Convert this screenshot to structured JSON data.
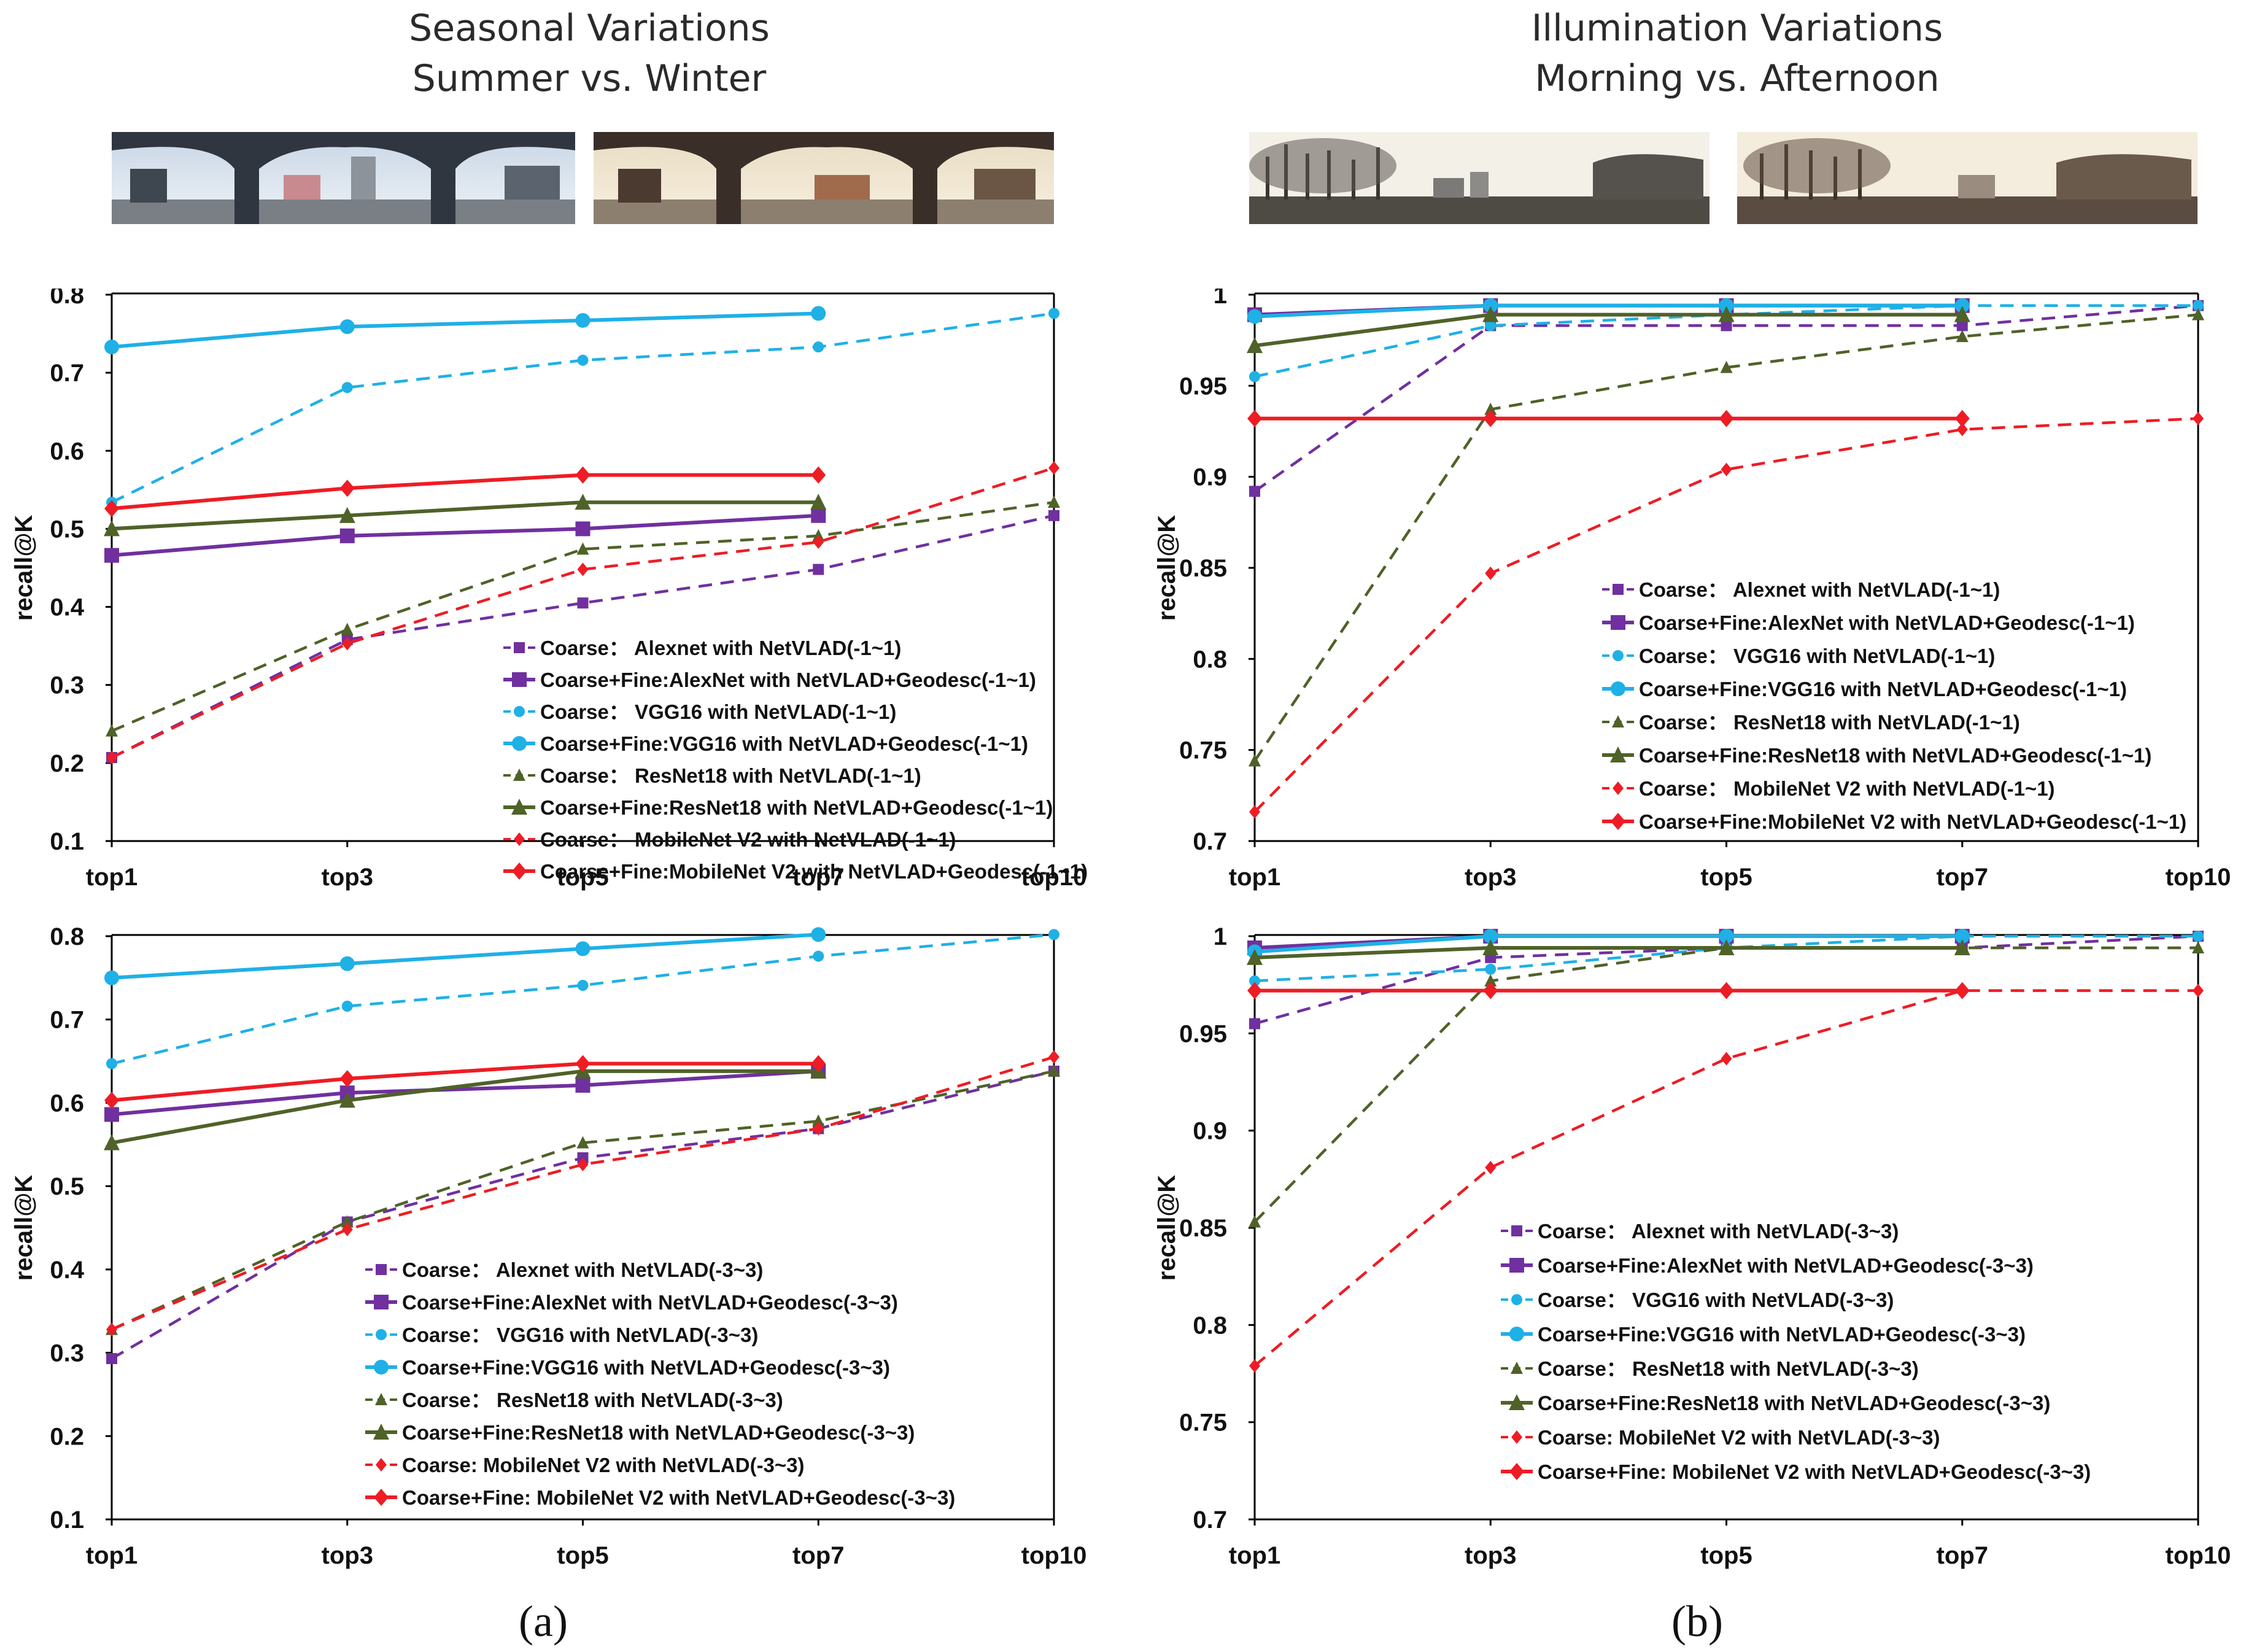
{
  "figure": {
    "panel_a_title": [
      "Seasonal Variations",
      "Summer vs. Winter"
    ],
    "panel_b_title": [
      "Illumination Variations",
      "Morning vs. Afternoon"
    ],
    "caption_a": "(a)",
    "caption_b": "(b)"
  },
  "colors": {
    "alexnet": "#7030a0",
    "vgg16": "#1fb0e6",
    "resnet18": "#4f6228",
    "mobilenet": "#ee1c24",
    "axis": "#000000"
  },
  "chart_data": [
    {
      "id": "a-top",
      "type": "line",
      "title": "Seasonal Variations: Summer vs. Winter (-1~1)",
      "xlabel": "",
      "ylabel": "recall@K",
      "categories": [
        "top1",
        "top3",
        "top5",
        "top7",
        "top10"
      ],
      "ylim": [
        0.1,
        0.8
      ],
      "yticks": [
        "0.1",
        "0.2",
        "0.3",
        "0.4",
        "0.5",
        "0.6",
        "0.7",
        "0.8"
      ],
      "series": [
        {
          "name": "Coarse：  Alexnet with NetVLAD(-1~1)",
          "model": "alexnet",
          "style": "dashed",
          "marker": "square",
          "values": [
            0.207,
            0.358,
            0.405,
            0.448,
            0.517
          ]
        },
        {
          "name": "Coarse+Fine:AlexNet with NetVLAD+Geodesc(-1~1)",
          "model": "alexnet",
          "style": "solid",
          "marker": "square",
          "values": [
            0.466,
            0.491,
            0.5,
            0.517,
            null
          ]
        },
        {
          "name": "Coarse：  VGG16 with NetVLAD(-1~1)",
          "model": "vgg16",
          "style": "dashed",
          "marker": "circle",
          "values": [
            0.534,
            0.681,
            0.716,
            0.733,
            0.776
          ]
        },
        {
          "name": "Coarse+Fine:VGG16 with NetVLAD+Geodesc(-1~1)",
          "model": "vgg16",
          "style": "solid",
          "marker": "circle",
          "values": [
            0.733,
            0.759,
            0.767,
            0.776,
            null
          ]
        },
        {
          "name": "Coarse：  ResNet18 with NetVLAD(-1~1)",
          "model": "resnet18",
          "style": "dashed",
          "marker": "triangle",
          "values": [
            0.241,
            0.371,
            0.474,
            0.491,
            0.534
          ]
        },
        {
          "name": "Coarse+Fine:ResNet18 with NetVLAD+Geodesc(-1~1)",
          "model": "resnet18",
          "style": "solid",
          "marker": "triangle",
          "values": [
            0.5,
            0.517,
            0.534,
            0.534,
            null
          ]
        },
        {
          "name": "Coarse：  MobileNet V2 with NetVLAD(-1~1)",
          "model": "mobilenet",
          "style": "dashed",
          "marker": "diamond",
          "values": [
            0.207,
            0.353,
            0.448,
            0.483,
            0.578
          ]
        },
        {
          "name": "Coarse+Fine:MobileNet V2 with NetVLAD+Geodesc(-1~1)",
          "model": "mobilenet",
          "style": "solid",
          "marker": "diamond",
          "values": [
            0.526,
            0.552,
            0.569,
            0.569,
            null
          ]
        }
      ]
    },
    {
      "id": "b-top",
      "type": "line",
      "title": "Illumination Variations: Morning vs. Afternoon (-1~1)",
      "xlabel": "",
      "ylabel": "recall@K",
      "categories": [
        "top1",
        "top3",
        "top5",
        "top7",
        "top10"
      ],
      "ylim": [
        0.7,
        1.0
      ],
      "yticks": [
        "0.7",
        "0.75",
        "0.8",
        "0.85",
        "0.9",
        "0.95",
        "1"
      ],
      "series": [
        {
          "name": "Coarse：  Alexnet with NetVLAD(-1~1)",
          "model": "alexnet",
          "style": "dashed",
          "marker": "square",
          "values": [
            0.892,
            0.983,
            0.983,
            0.983,
            0.994
          ]
        },
        {
          "name": "Coarse+Fine:AlexNet with NetVLAD+Geodesc(-1~1)",
          "model": "alexnet",
          "style": "solid",
          "marker": "square",
          "values": [
            0.989,
            0.994,
            0.994,
            0.994,
            null
          ]
        },
        {
          "name": "Coarse：  VGG16 with NetVLAD(-1~1)",
          "model": "vgg16",
          "style": "dashed",
          "marker": "circle",
          "values": [
            0.955,
            0.983,
            0.989,
            0.994,
            0.994
          ]
        },
        {
          "name": "Coarse+Fine:VGG16 with NetVLAD+Geodesc(-1~1)",
          "model": "vgg16",
          "style": "solid",
          "marker": "circle",
          "values": [
            0.988,
            0.994,
            0.994,
            0.994,
            null
          ]
        },
        {
          "name": "Coarse：  ResNet18 with NetVLAD(-1~1)",
          "model": "resnet18",
          "style": "dashed",
          "marker": "triangle",
          "values": [
            0.744,
            0.937,
            0.96,
            0.977,
            0.989
          ]
        },
        {
          "name": "Coarse+Fine:ResNet18 with NetVLAD+Geodesc(-1~1)",
          "model": "resnet18",
          "style": "solid",
          "marker": "triangle",
          "values": [
            0.972,
            0.989,
            0.989,
            0.989,
            null
          ]
        },
        {
          "name": "Coarse：  MobileNet V2 with NetVLAD(-1~1)",
          "model": "mobilenet",
          "style": "dashed",
          "marker": "diamond",
          "values": [
            0.716,
            0.847,
            0.904,
            0.926,
            0.932
          ]
        },
        {
          "name": "Coarse+Fine:MobileNet V2 with NetVLAD+Geodesc(-1~1)",
          "model": "mobilenet",
          "style": "solid",
          "marker": "diamond",
          "values": [
            0.932,
            0.932,
            0.932,
            0.932,
            null
          ]
        }
      ]
    },
    {
      "id": "a-bottom",
      "type": "line",
      "title": "Seasonal Variations: Summer vs. Winter (-3~3)",
      "xlabel": "",
      "ylabel": "recall@K",
      "categories": [
        "top1",
        "top3",
        "top5",
        "top7",
        "top10"
      ],
      "ylim": [
        0.1,
        0.8
      ],
      "yticks": [
        "0.1",
        "0.2",
        "0.3",
        "0.4",
        "0.5",
        "0.6",
        "0.7",
        "0.8"
      ],
      "series": [
        {
          "name": "Coarse：  Alexnet with NetVLAD(-3~3)",
          "model": "alexnet",
          "style": "dashed",
          "marker": "square",
          "values": [
            0.293,
            0.457,
            0.534,
            0.569,
            0.638
          ]
        },
        {
          "name": "Coarse+Fine:AlexNet with NetVLAD+Geodesc(-3~3)",
          "model": "alexnet",
          "style": "solid",
          "marker": "square",
          "values": [
            0.586,
            0.612,
            0.621,
            0.638,
            null
          ]
        },
        {
          "name": "Coarse：  VGG16 with NetVLAD(-3~3)",
          "model": "vgg16",
          "style": "dashed",
          "marker": "circle",
          "values": [
            0.647,
            0.716,
            0.741,
            0.776,
            0.802
          ]
        },
        {
          "name": "Coarse+Fine:VGG16 with NetVLAD+Geodesc(-3~3)",
          "model": "vgg16",
          "style": "solid",
          "marker": "circle",
          "values": [
            0.75,
            0.767,
            0.785,
            0.802,
            null
          ]
        },
        {
          "name": "Coarse：  ResNet18 with NetVLAD(-3~3)",
          "model": "resnet18",
          "style": "dashed",
          "marker": "triangle",
          "values": [
            0.328,
            0.457,
            0.552,
            0.578,
            0.638
          ]
        },
        {
          "name": "Coarse+Fine:ResNet18 with NetVLAD+Geodesc(-3~3)",
          "model": "resnet18",
          "style": "solid",
          "marker": "triangle",
          "values": [
            0.552,
            0.603,
            0.638,
            0.638,
            null
          ]
        },
        {
          "name": "Coarse: MobileNet V2 with NetVLAD(-3~3)",
          "model": "mobilenet",
          "style": "dashed",
          "marker": "diamond",
          "values": [
            0.328,
            0.448,
            0.526,
            0.569,
            0.655
          ]
        },
        {
          "name": "Coarse+Fine: MobileNet V2 with NetVLAD+Geodesc(-3~3)",
          "model": "mobilenet",
          "style": "solid",
          "marker": "diamond",
          "values": [
            0.603,
            0.629,
            0.647,
            0.647,
            null
          ]
        }
      ]
    },
    {
      "id": "b-bottom",
      "type": "line",
      "title": "Illumination Variations: Morning vs. Afternoon (-3~3)",
      "xlabel": "",
      "ylabel": "recall@K",
      "categories": [
        "top1",
        "top3",
        "top5",
        "top7",
        "top10"
      ],
      "ylim": [
        0.7,
        1.0
      ],
      "yticks": [
        "0.7",
        "0.75",
        "0.8",
        "0.85",
        "0.9",
        "0.95",
        "1"
      ],
      "series": [
        {
          "name": "Coarse：  Alexnet with NetVLAD(-3~3)",
          "model": "alexnet",
          "style": "dashed",
          "marker": "square",
          "values": [
            0.955,
            0.989,
            0.994,
            0.994,
            1.0
          ]
        },
        {
          "name": "Coarse+Fine:AlexNet with NetVLAD+Geodesc(-3~3)",
          "model": "alexnet",
          "style": "solid",
          "marker": "square",
          "values": [
            0.994,
            1.0,
            1.0,
            1.0,
            null
          ]
        },
        {
          "name": "Coarse：  VGG16 with NetVLAD(-3~3)",
          "model": "vgg16",
          "style": "dashed",
          "marker": "circle",
          "values": [
            0.977,
            0.983,
            0.994,
            1.0,
            1.0
          ]
        },
        {
          "name": "Coarse+Fine:VGG16 with NetVLAD+Geodesc(-3~3)",
          "model": "vgg16",
          "style": "solid",
          "marker": "circle",
          "values": [
            0.992,
            1.0,
            1.0,
            1.0,
            null
          ]
        },
        {
          "name": "Coarse：  ResNet18 with NetVLAD(-3~3)",
          "model": "resnet18",
          "style": "dashed",
          "marker": "triangle",
          "values": [
            0.853,
            0.977,
            0.994,
            0.994,
            0.994
          ]
        },
        {
          "name": "Coarse+Fine:ResNet18 with NetVLAD+Geodesc(-3~3)",
          "model": "resnet18",
          "style": "solid",
          "marker": "triangle",
          "values": [
            0.989,
            0.994,
            0.994,
            0.994,
            null
          ]
        },
        {
          "name": "Coarse: MobileNet V2 with NetVLAD(-3~3)",
          "model": "mobilenet",
          "style": "dashed",
          "marker": "diamond",
          "values": [
            0.779,
            0.881,
            0.937,
            0.972,
            0.972
          ]
        },
        {
          "name": "Coarse+Fine: MobileNet V2 with NetVLAD+Geodesc(-3~3)",
          "model": "mobilenet",
          "style": "solid",
          "marker": "diamond",
          "values": [
            0.972,
            0.972,
            0.972,
            0.972,
            null
          ]
        }
      ]
    }
  ]
}
